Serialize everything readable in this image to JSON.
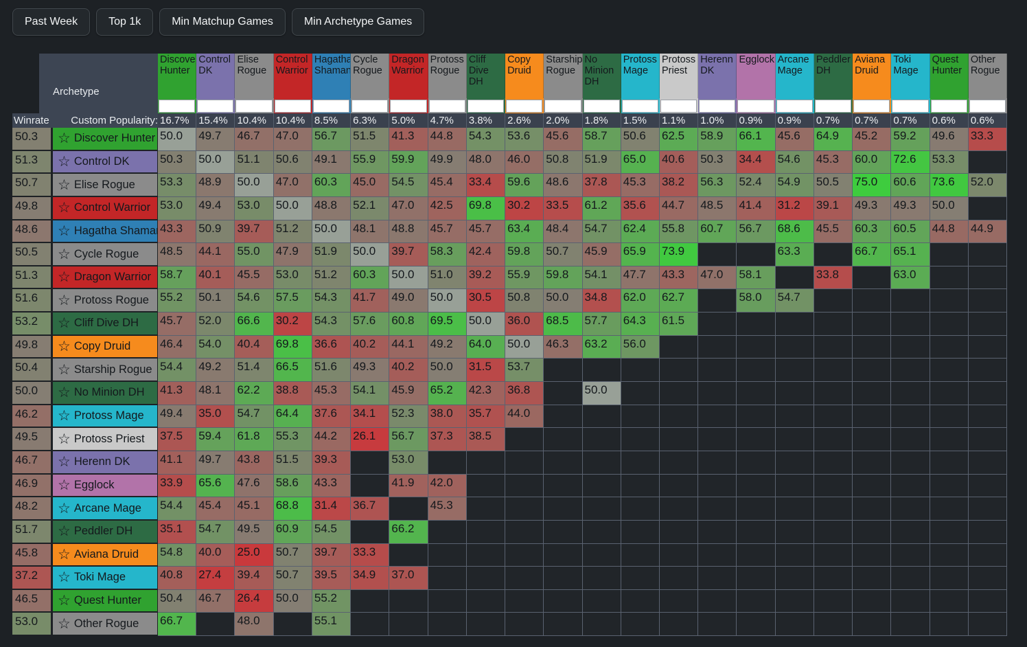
{
  "toolbar": {
    "buttons": [
      {
        "label": "Past Week"
      },
      {
        "label": "Top 1k"
      },
      {
        "label": "Min Matchup Games"
      },
      {
        "label": "Min Archetype Games"
      }
    ]
  },
  "table": {
    "corner": {
      "archetype_label": "Archetype",
      "winrate_label": "Winrate",
      "popularity_label": "Custom Popularity:"
    },
    "star_icon": "☆",
    "empty_cell_color": "#212529",
    "grid_line_color": "#5a6270",
    "columns": [
      {
        "name": "Discover Hunter",
        "color": "#30a230",
        "popularity": "16.7%"
      },
      {
        "name": "Control DK",
        "color": "#7b72ac",
        "popularity": "15.4%"
      },
      {
        "name": "Elise Rogue",
        "color": "#8b8b8b",
        "popularity": "10.4%"
      },
      {
        "name": "Control Warrior",
        "color": "#c32627",
        "popularity": "10.4%"
      },
      {
        "name": "Hagatha Shaman",
        "color": "#2f80b5",
        "popularity": "8.5%"
      },
      {
        "name": "Cycle Rogue",
        "color": "#8b8b8b",
        "popularity": "6.3%"
      },
      {
        "name": "Dragon Warrior",
        "color": "#c32627",
        "popularity": "5.0%"
      },
      {
        "name": "Protoss Rogue",
        "color": "#8b8b8b",
        "popularity": "4.7%"
      },
      {
        "name": "Cliff Dive DH",
        "color": "#2d6b44",
        "popularity": "3.8%"
      },
      {
        "name": "Copy Druid",
        "color": "#f68b1d",
        "popularity": "2.6%"
      },
      {
        "name": "Starship Rogue",
        "color": "#8b8b8b",
        "popularity": "2.0%"
      },
      {
        "name": "No Minion DH",
        "color": "#2d6b44",
        "popularity": "1.8%"
      },
      {
        "name": "Protoss Mage",
        "color": "#25b6cb",
        "popularity": "1.5%"
      },
      {
        "name": "Protoss Priest",
        "color": "#c9c9c9",
        "popularity": "1.1%"
      },
      {
        "name": "Herenn DK",
        "color": "#7b72ac",
        "popularity": "1.0%"
      },
      {
        "name": "Egglock",
        "color": "#b273a9",
        "popularity": "0.9%"
      },
      {
        "name": "Arcane Mage",
        "color": "#25b6cb",
        "popularity": "0.9%"
      },
      {
        "name": "Peddler DH",
        "color": "#2d6b44",
        "popularity": "0.7%"
      },
      {
        "name": "Aviana Druid",
        "color": "#f68b1d",
        "popularity": "0.7%"
      },
      {
        "name": "Toki Mage",
        "color": "#25b6cb",
        "popularity": "0.7%"
      },
      {
        "name": "Quest Hunter",
        "color": "#30a230",
        "popularity": "0.6%"
      },
      {
        "name": "Other Rogue",
        "color": "#8b8b8b",
        "popularity": "0.6%"
      }
    ],
    "rows": [
      {
        "name": "Discover Hunter",
        "color": "#30a230",
        "winrate": 50.3,
        "cells": [
          50.0,
          49.7,
          46.7,
          47.0,
          56.7,
          51.5,
          41.3,
          44.8,
          54.3,
          53.6,
          45.6,
          58.7,
          50.6,
          62.5,
          58.9,
          66.1,
          45.6,
          64.9,
          45.2,
          59.2,
          49.6,
          33.3
        ]
      },
      {
        "name": "Control DK",
        "color": "#7b72ac",
        "winrate": 51.3,
        "cells": [
          50.3,
          50.0,
          51.1,
          50.6,
          49.1,
          55.9,
          59.9,
          49.9,
          48.0,
          46.0,
          50.8,
          51.9,
          65.0,
          40.6,
          50.3,
          34.4,
          54.6,
          45.3,
          60.0,
          72.6,
          53.3,
          null
        ]
      },
      {
        "name": "Elise Rogue",
        "color": "#8b8b8b",
        "winrate": 50.7,
        "cells": [
          53.3,
          48.9,
          50.0,
          47.0,
          60.3,
          45.0,
          54.5,
          45.4,
          33.4,
          59.6,
          48.6,
          37.8,
          45.3,
          38.2,
          56.3,
          52.4,
          54.9,
          50.5,
          75.0,
          60.6,
          73.6,
          52.0
        ]
      },
      {
        "name": "Control Warrior",
        "color": "#c32627",
        "winrate": 49.8,
        "cells": [
          53.0,
          49.4,
          53.0,
          50.0,
          48.8,
          52.1,
          47.0,
          42.5,
          69.8,
          30.2,
          33.5,
          61.2,
          35.6,
          44.7,
          48.5,
          41.4,
          31.2,
          39.1,
          49.3,
          49.3,
          50.0,
          null
        ]
      },
      {
        "name": "Hagatha Shaman",
        "color": "#2f80b5",
        "winrate": 48.6,
        "cells": [
          43.3,
          50.9,
          39.7,
          51.2,
          50.0,
          48.1,
          48.8,
          45.7,
          45.7,
          63.4,
          48.4,
          54.7,
          62.4,
          55.8,
          60.7,
          56.7,
          68.6,
          45.5,
          60.3,
          60.5,
          44.8,
          44.9
        ]
      },
      {
        "name": "Cycle Rogue",
        "color": "#8b8b8b",
        "winrate": 50.5,
        "cells": [
          48.5,
          44.1,
          55.0,
          47.9,
          51.9,
          50.0,
          39.7,
          58.3,
          42.4,
          59.8,
          50.7,
          45.9,
          65.9,
          73.9,
          null,
          null,
          63.3,
          null,
          66.7,
          65.1,
          null,
          null
        ]
      },
      {
        "name": "Dragon Warrior",
        "color": "#c32627",
        "winrate": 51.3,
        "cells": [
          58.7,
          40.1,
          45.5,
          53.0,
          51.2,
          60.3,
          50.0,
          51.0,
          39.2,
          55.9,
          59.8,
          54.1,
          47.7,
          43.3,
          47.0,
          58.1,
          null,
          33.8,
          null,
          63.0,
          null,
          null
        ]
      },
      {
        "name": "Protoss Rogue",
        "color": "#8b8b8b",
        "winrate": 51.6,
        "cells": [
          55.2,
          50.1,
          54.6,
          57.5,
          54.3,
          41.7,
          49.0,
          50.0,
          30.5,
          50.8,
          50.0,
          34.8,
          62.0,
          62.7,
          null,
          58.0,
          54.7,
          null,
          null,
          null,
          null,
          null
        ]
      },
      {
        "name": "Cliff Dive DH",
        "color": "#2d6b44",
        "winrate": 53.2,
        "cells": [
          45.7,
          52.0,
          66.6,
          30.2,
          54.3,
          57.6,
          60.8,
          69.5,
          50.0,
          36.0,
          68.5,
          57.7,
          64.3,
          61.5,
          null,
          null,
          null,
          null,
          null,
          null,
          null,
          null
        ]
      },
      {
        "name": "Copy Druid",
        "color": "#f68b1d",
        "winrate": 49.8,
        "cells": [
          46.4,
          54.0,
          40.4,
          69.8,
          36.6,
          40.2,
          44.1,
          49.2,
          64.0,
          50.0,
          46.3,
          63.2,
          56.0,
          null,
          null,
          null,
          null,
          null,
          null,
          null,
          null,
          null
        ]
      },
      {
        "name": "Starship Rogue",
        "color": "#8b8b8b",
        "winrate": 50.4,
        "cells": [
          54.4,
          49.2,
          51.4,
          66.5,
          51.6,
          49.3,
          40.2,
          50.0,
          31.5,
          53.7,
          null,
          null,
          null,
          null,
          null,
          null,
          null,
          null,
          null,
          null,
          null,
          null
        ]
      },
      {
        "name": "No Minion DH",
        "color": "#2d6b44",
        "winrate": 50.0,
        "cells": [
          41.3,
          48.1,
          62.2,
          38.8,
          45.3,
          54.1,
          45.9,
          65.2,
          42.3,
          36.8,
          null,
          50.0,
          null,
          null,
          null,
          null,
          null,
          null,
          null,
          null,
          null,
          null
        ]
      },
      {
        "name": "Protoss Mage",
        "color": "#25b6cb",
        "winrate": 46.2,
        "cells": [
          49.4,
          35.0,
          54.7,
          64.4,
          37.6,
          34.1,
          52.3,
          38.0,
          35.7,
          44.0,
          null,
          null,
          null,
          null,
          null,
          null,
          null,
          null,
          null,
          null,
          null,
          null
        ]
      },
      {
        "name": "Protoss Priest",
        "color": "#c9c9c9",
        "winrate": 49.5,
        "cells": [
          37.5,
          59.4,
          61.8,
          55.3,
          44.2,
          26.1,
          56.7,
          37.3,
          38.5,
          null,
          null,
          null,
          null,
          null,
          null,
          null,
          null,
          null,
          null,
          null,
          null,
          null
        ]
      },
      {
        "name": "Herenn DK",
        "color": "#7b72ac",
        "winrate": 46.7,
        "cells": [
          41.1,
          49.7,
          43.8,
          51.5,
          39.3,
          null,
          53.0,
          null,
          null,
          null,
          null,
          null,
          null,
          null,
          null,
          null,
          null,
          null,
          null,
          null,
          null,
          null
        ]
      },
      {
        "name": "Egglock",
        "color": "#b273a9",
        "winrate": 46.9,
        "cells": [
          33.9,
          65.6,
          47.6,
          58.6,
          43.3,
          null,
          41.9,
          42.0,
          null,
          null,
          null,
          null,
          null,
          null,
          null,
          null,
          null,
          null,
          null,
          null,
          null,
          null
        ]
      },
      {
        "name": "Arcane Mage",
        "color": "#25b6cb",
        "winrate": 48.2,
        "cells": [
          54.4,
          45.4,
          45.1,
          68.8,
          31.4,
          36.7,
          null,
          45.3,
          null,
          null,
          null,
          null,
          null,
          null,
          null,
          null,
          null,
          null,
          null,
          null,
          null,
          null
        ]
      },
      {
        "name": "Peddler DH",
        "color": "#2d6b44",
        "winrate": 51.7,
        "cells": [
          35.1,
          54.7,
          49.5,
          60.9,
          54.5,
          null,
          66.2,
          null,
          null,
          null,
          null,
          null,
          null,
          null,
          null,
          null,
          null,
          null,
          null,
          null,
          null,
          null
        ]
      },
      {
        "name": "Aviana Druid",
        "color": "#f68b1d",
        "winrate": 45.8,
        "cells": [
          54.8,
          40.0,
          25.0,
          50.7,
          39.7,
          33.3,
          null,
          null,
          null,
          null,
          null,
          null,
          null,
          null,
          null,
          null,
          null,
          null,
          null,
          null,
          null,
          null
        ]
      },
      {
        "name": "Toki Mage",
        "color": "#25b6cb",
        "winrate": 37.2,
        "cells": [
          40.8,
          27.4,
          39.4,
          50.7,
          39.5,
          34.9,
          37.0,
          null,
          null,
          null,
          null,
          null,
          null,
          null,
          null,
          null,
          null,
          null,
          null,
          null,
          null,
          null
        ]
      },
      {
        "name": "Quest Hunter",
        "color": "#30a230",
        "winrate": 46.5,
        "cells": [
          50.4,
          46.7,
          26.4,
          50.0,
          55.2,
          null,
          null,
          null,
          null,
          null,
          null,
          null,
          null,
          null,
          null,
          null,
          null,
          null,
          null,
          null,
          null,
          null
        ]
      },
      {
        "name": "Other Rogue",
        "color": "#8b8b8b",
        "winrate": 53.0,
        "cells": [
          66.7,
          null,
          48.0,
          null,
          55.1,
          null,
          null,
          null,
          null,
          null,
          null,
          null,
          null,
          null,
          null,
          null,
          null,
          null,
          null,
          null,
          null,
          null
        ]
      }
    ]
  }
}
